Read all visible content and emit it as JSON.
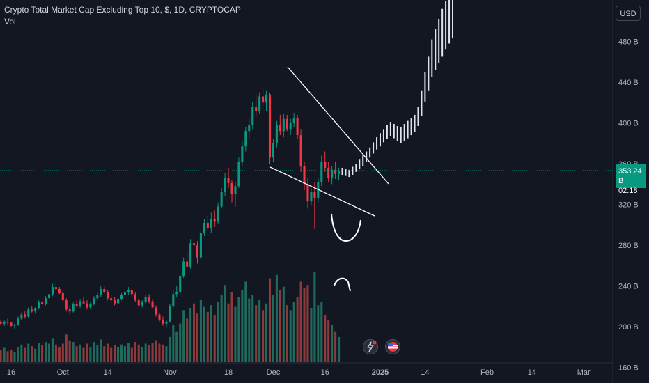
{
  "header": {
    "title": "Crypto Total Market Cap Excluding Top 10, $, 1D, CRYPTOCAP",
    "volume_label": "Vol"
  },
  "toolbar": {
    "currency_label": "USD"
  },
  "last_price": {
    "value": "353.24 B",
    "countdown": "02:18"
  },
  "colors": {
    "background": "#131722",
    "up": "#089981",
    "down": "#f23645",
    "projection": "#e0e3eb",
    "drawing": "#ffffff"
  },
  "icons": [
    "lightning-icon",
    "us-flag-icon"
  ],
  "chart_data": {
    "type": "candlestick",
    "y_axis": {
      "range": [
        155,
        520
      ],
      "ticks": [
        160,
        200,
        240,
        280,
        320,
        360,
        400,
        440,
        480
      ],
      "tick_labels": [
        "160 B",
        "200 B",
        "240 B",
        "280 B",
        "320 B",
        "360 B",
        "400 B",
        "440 B",
        "480 B"
      ]
    },
    "x_axis": {
      "range": [
        "2024-09-16",
        "2025-03-06"
      ],
      "ticks": [
        {
          "date": "2024-09-16",
          "label": "16"
        },
        {
          "date": "2024-10-01",
          "label": "Oct"
        },
        {
          "date": "2024-10-14",
          "label": "14"
        },
        {
          "date": "2024-11-01",
          "label": "Nov"
        },
        {
          "date": "2024-11-18",
          "label": "18"
        },
        {
          "date": "2024-12-01",
          "label": "Dec"
        },
        {
          "date": "2024-12-16",
          "label": "16"
        },
        {
          "date": "2025-01-01",
          "label": "2025"
        },
        {
          "date": "2025-01-14",
          "label": "14"
        },
        {
          "date": "2025-02-01",
          "label": "Feb"
        },
        {
          "date": "2025-02-14",
          "label": "14"
        },
        {
          "date": "2025-03-01",
          "label": "Mar"
        }
      ]
    },
    "grid": false,
    "current_price": 353.24,
    "start_date": "2024-09-12",
    "candles": [
      [
        207,
        209,
        204,
        205
      ],
      [
        205,
        207,
        202,
        203
      ],
      [
        203,
        206,
        201,
        205
      ],
      [
        205,
        208,
        202,
        204
      ],
      [
        204,
        205,
        200,
        201
      ],
      [
        201,
        203,
        198,
        202
      ],
      [
        202,
        210,
        201,
        208
      ],
      [
        208,
        214,
        207,
        212
      ],
      [
        212,
        215,
        208,
        210
      ],
      [
        210,
        219,
        209,
        217
      ],
      [
        217,
        220,
        214,
        215
      ],
      [
        215,
        219,
        213,
        218
      ],
      [
        218,
        226,
        217,
        224
      ],
      [
        224,
        228,
        220,
        222
      ],
      [
        222,
        230,
        221,
        228
      ],
      [
        228,
        234,
        226,
        232
      ],
      [
        232,
        242,
        230,
        239
      ],
      [
        239,
        243,
        235,
        237
      ],
      [
        237,
        239,
        232,
        233
      ],
      [
        233,
        236,
        224,
        226
      ],
      [
        226,
        228,
        215,
        217
      ],
      [
        217,
        220,
        212,
        215
      ],
      [
        215,
        224,
        214,
        222
      ],
      [
        222,
        226,
        219,
        220
      ],
      [
        220,
        227,
        218,
        225
      ],
      [
        225,
        229,
        222,
        223
      ],
      [
        223,
        226,
        217,
        219
      ],
      [
        219,
        224,
        217,
        222
      ],
      [
        222,
        230,
        221,
        228
      ],
      [
        228,
        234,
        226,
        231
      ],
      [
        231,
        240,
        229,
        237
      ],
      [
        237,
        240,
        232,
        234
      ],
      [
        234,
        236,
        226,
        228
      ],
      [
        228,
        231,
        224,
        226
      ],
      [
        226,
        229,
        221,
        223
      ],
      [
        223,
        229,
        222,
        227
      ],
      [
        227,
        233,
        226,
        231
      ],
      [
        231,
        236,
        229,
        234
      ],
      [
        234,
        239,
        231,
        236
      ],
      [
        236,
        238,
        230,
        232
      ],
      [
        232,
        234,
        224,
        226
      ],
      [
        226,
        228,
        219,
        221
      ],
      [
        221,
        226,
        219,
        224
      ],
      [
        224,
        231,
        222,
        229
      ],
      [
        229,
        232,
        223,
        225
      ],
      [
        225,
        227,
        218,
        219
      ],
      [
        219,
        221,
        210,
        212
      ],
      [
        212,
        214,
        205,
        207
      ],
      [
        207,
        210,
        201,
        203
      ],
      [
        203,
        207,
        199,
        205
      ],
      [
        205,
        222,
        204,
        220
      ],
      [
        220,
        236,
        218,
        232
      ],
      [
        232,
        240,
        229,
        234
      ],
      [
        234,
        252,
        232,
        250
      ],
      [
        250,
        268,
        248,
        264
      ],
      [
        264,
        272,
        256,
        259
      ],
      [
        259,
        286,
        257,
        282
      ],
      [
        282,
        296,
        276,
        280
      ],
      [
        280,
        284,
        262,
        268
      ],
      [
        268,
        295,
        265,
        292
      ],
      [
        292,
        306,
        289,
        302
      ],
      [
        302,
        309,
        294,
        297
      ],
      [
        297,
        312,
        292,
        306
      ],
      [
        306,
        314,
        298,
        303
      ],
      [
        303,
        322,
        301,
        318
      ],
      [
        318,
        336,
        316,
        332
      ],
      [
        332,
        351,
        328,
        346
      ],
      [
        346,
        356,
        336,
        341
      ],
      [
        341,
        344,
        322,
        330
      ],
      [
        330,
        342,
        318,
        338
      ],
      [
        338,
        366,
        336,
        362
      ],
      [
        362,
        382,
        358,
        377
      ],
      [
        377,
        396,
        372,
        392
      ],
      [
        392,
        404,
        384,
        398
      ],
      [
        398,
        421,
        394,
        416
      ],
      [
        416,
        427,
        406,
        412
      ],
      [
        412,
        430,
        409,
        426
      ],
      [
        426,
        434,
        414,
        420
      ],
      [
        420,
        432,
        412,
        428
      ],
      [
        428,
        430,
        360,
        366
      ],
      [
        366,
        384,
        362,
        380
      ],
      [
        380,
        402,
        376,
        398
      ],
      [
        398,
        408,
        388,
        392
      ],
      [
        392,
        409,
        386,
        404
      ],
      [
        404,
        408,
        392,
        394
      ],
      [
        394,
        404,
        388,
        400
      ],
      [
        400,
        410,
        396,
        405
      ],
      [
        405,
        408,
        384,
        388
      ],
      [
        388,
        394,
        352,
        358
      ],
      [
        358,
        362,
        334,
        340
      ],
      [
        340,
        346,
        316,
        323
      ],
      [
        323,
        336,
        319,
        332
      ],
      [
        332,
        342,
        296,
        326
      ],
      [
        326,
        346,
        322,
        342
      ],
      [
        342,
        368,
        338,
        362
      ],
      [
        362,
        372,
        352,
        356
      ],
      [
        356,
        362,
        342,
        346
      ],
      [
        346,
        358,
        340,
        354
      ],
      [
        354,
        362,
        345,
        350
      ],
      [
        350,
        356,
        344,
        353
      ]
    ],
    "volumes": [
      [
        16,
        "up"
      ],
      [
        14,
        "down"
      ],
      [
        17,
        "up"
      ],
      [
        13,
        "down"
      ],
      [
        15,
        "down"
      ],
      [
        12,
        "up"
      ],
      [
        18,
        "up"
      ],
      [
        21,
        "up"
      ],
      [
        17,
        "down"
      ],
      [
        22,
        "up"
      ],
      [
        19,
        "down"
      ],
      [
        16,
        "up"
      ],
      [
        23,
        "up"
      ],
      [
        20,
        "down"
      ],
      [
        24,
        "up"
      ],
      [
        22,
        "up"
      ],
      [
        28,
        "up"
      ],
      [
        21,
        "down"
      ],
      [
        18,
        "down"
      ],
      [
        22,
        "down"
      ],
      [
        33,
        "down"
      ],
      [
        26,
        "down"
      ],
      [
        24,
        "up"
      ],
      [
        19,
        "down"
      ],
      [
        21,
        "up"
      ],
      [
        17,
        "down"
      ],
      [
        22,
        "down"
      ],
      [
        18,
        "up"
      ],
      [
        24,
        "up"
      ],
      [
        20,
        "up"
      ],
      [
        27,
        "up"
      ],
      [
        19,
        "down"
      ],
      [
        22,
        "down"
      ],
      [
        17,
        "down"
      ],
      [
        20,
        "down"
      ],
      [
        18,
        "up"
      ],
      [
        21,
        "up"
      ],
      [
        19,
        "up"
      ],
      [
        23,
        "up"
      ],
      [
        17,
        "down"
      ],
      [
        24,
        "down"
      ],
      [
        21,
        "down"
      ],
      [
        18,
        "up"
      ],
      [
        22,
        "up"
      ],
      [
        20,
        "down"
      ],
      [
        23,
        "down"
      ],
      [
        26,
        "down"
      ],
      [
        22,
        "down"
      ],
      [
        21,
        "down"
      ],
      [
        19,
        "up"
      ],
      [
        30,
        "up"
      ],
      [
        44,
        "up"
      ],
      [
        36,
        "up"
      ],
      [
        46,
        "up"
      ],
      [
        62,
        "up"
      ],
      [
        52,
        "down"
      ],
      [
        64,
        "up"
      ],
      [
        70,
        "down"
      ],
      [
        58,
        "down"
      ],
      [
        74,
        "up"
      ],
      [
        66,
        "up"
      ],
      [
        60,
        "down"
      ],
      [
        68,
        "up"
      ],
      [
        56,
        "down"
      ],
      [
        72,
        "up"
      ],
      [
        80,
        "up"
      ],
      [
        92,
        "up"
      ],
      [
        70,
        "down"
      ],
      [
        84,
        "down"
      ],
      [
        66,
        "up"
      ],
      [
        78,
        "up"
      ],
      [
        86,
        "up"
      ],
      [
        96,
        "up"
      ],
      [
        76,
        "up"
      ],
      [
        80,
        "up"
      ],
      [
        68,
        "down"
      ],
      [
        74,
        "up"
      ],
      [
        62,
        "down"
      ],
      [
        70,
        "up"
      ],
      [
        100,
        "down"
      ],
      [
        80,
        "up"
      ],
      [
        104,
        "up"
      ],
      [
        86,
        "down"
      ],
      [
        90,
        "up"
      ],
      [
        68,
        "down"
      ],
      [
        62,
        "up"
      ],
      [
        72,
        "up"
      ],
      [
        78,
        "down"
      ],
      [
        96,
        "down"
      ],
      [
        88,
        "down"
      ],
      [
        92,
        "down"
      ],
      [
        64,
        "up"
      ],
      [
        108,
        "up"
      ],
      [
        68,
        "up"
      ],
      [
        72,
        "up"
      ],
      [
        56,
        "down"
      ],
      [
        50,
        "down"
      ],
      [
        44,
        "up"
      ],
      [
        36,
        "down"
      ],
      [
        30,
        "up"
      ]
    ],
    "projection": {
      "color": "#e0e3eb",
      "bars": [
        [
          349,
          356
        ],
        [
          348,
          355
        ],
        [
          347,
          354
        ],
        [
          349,
          357
        ],
        [
          352,
          360
        ],
        [
          355,
          364
        ],
        [
          358,
          368
        ],
        [
          362,
          372
        ],
        [
          366,
          376
        ],
        [
          370,
          381
        ],
        [
          374,
          386
        ],
        [
          377,
          390
        ],
        [
          381,
          394
        ],
        [
          384,
          398
        ],
        [
          387,
          401
        ],
        [
          385,
          399
        ],
        [
          382,
          397
        ],
        [
          380,
          396
        ],
        [
          382,
          399
        ],
        [
          385,
          402
        ],
        [
          388,
          405
        ],
        [
          391,
          408
        ],
        [
          397,
          416
        ],
        [
          407,
          432
        ],
        [
          421,
          450
        ],
        [
          432,
          465
        ],
        [
          445,
          482
        ],
        [
          452,
          492
        ],
        [
          459,
          502
        ],
        [
          465,
          512
        ],
        [
          472,
          520
        ],
        [
          478,
          525
        ],
        [
          483,
          528
        ]
      ]
    }
  }
}
